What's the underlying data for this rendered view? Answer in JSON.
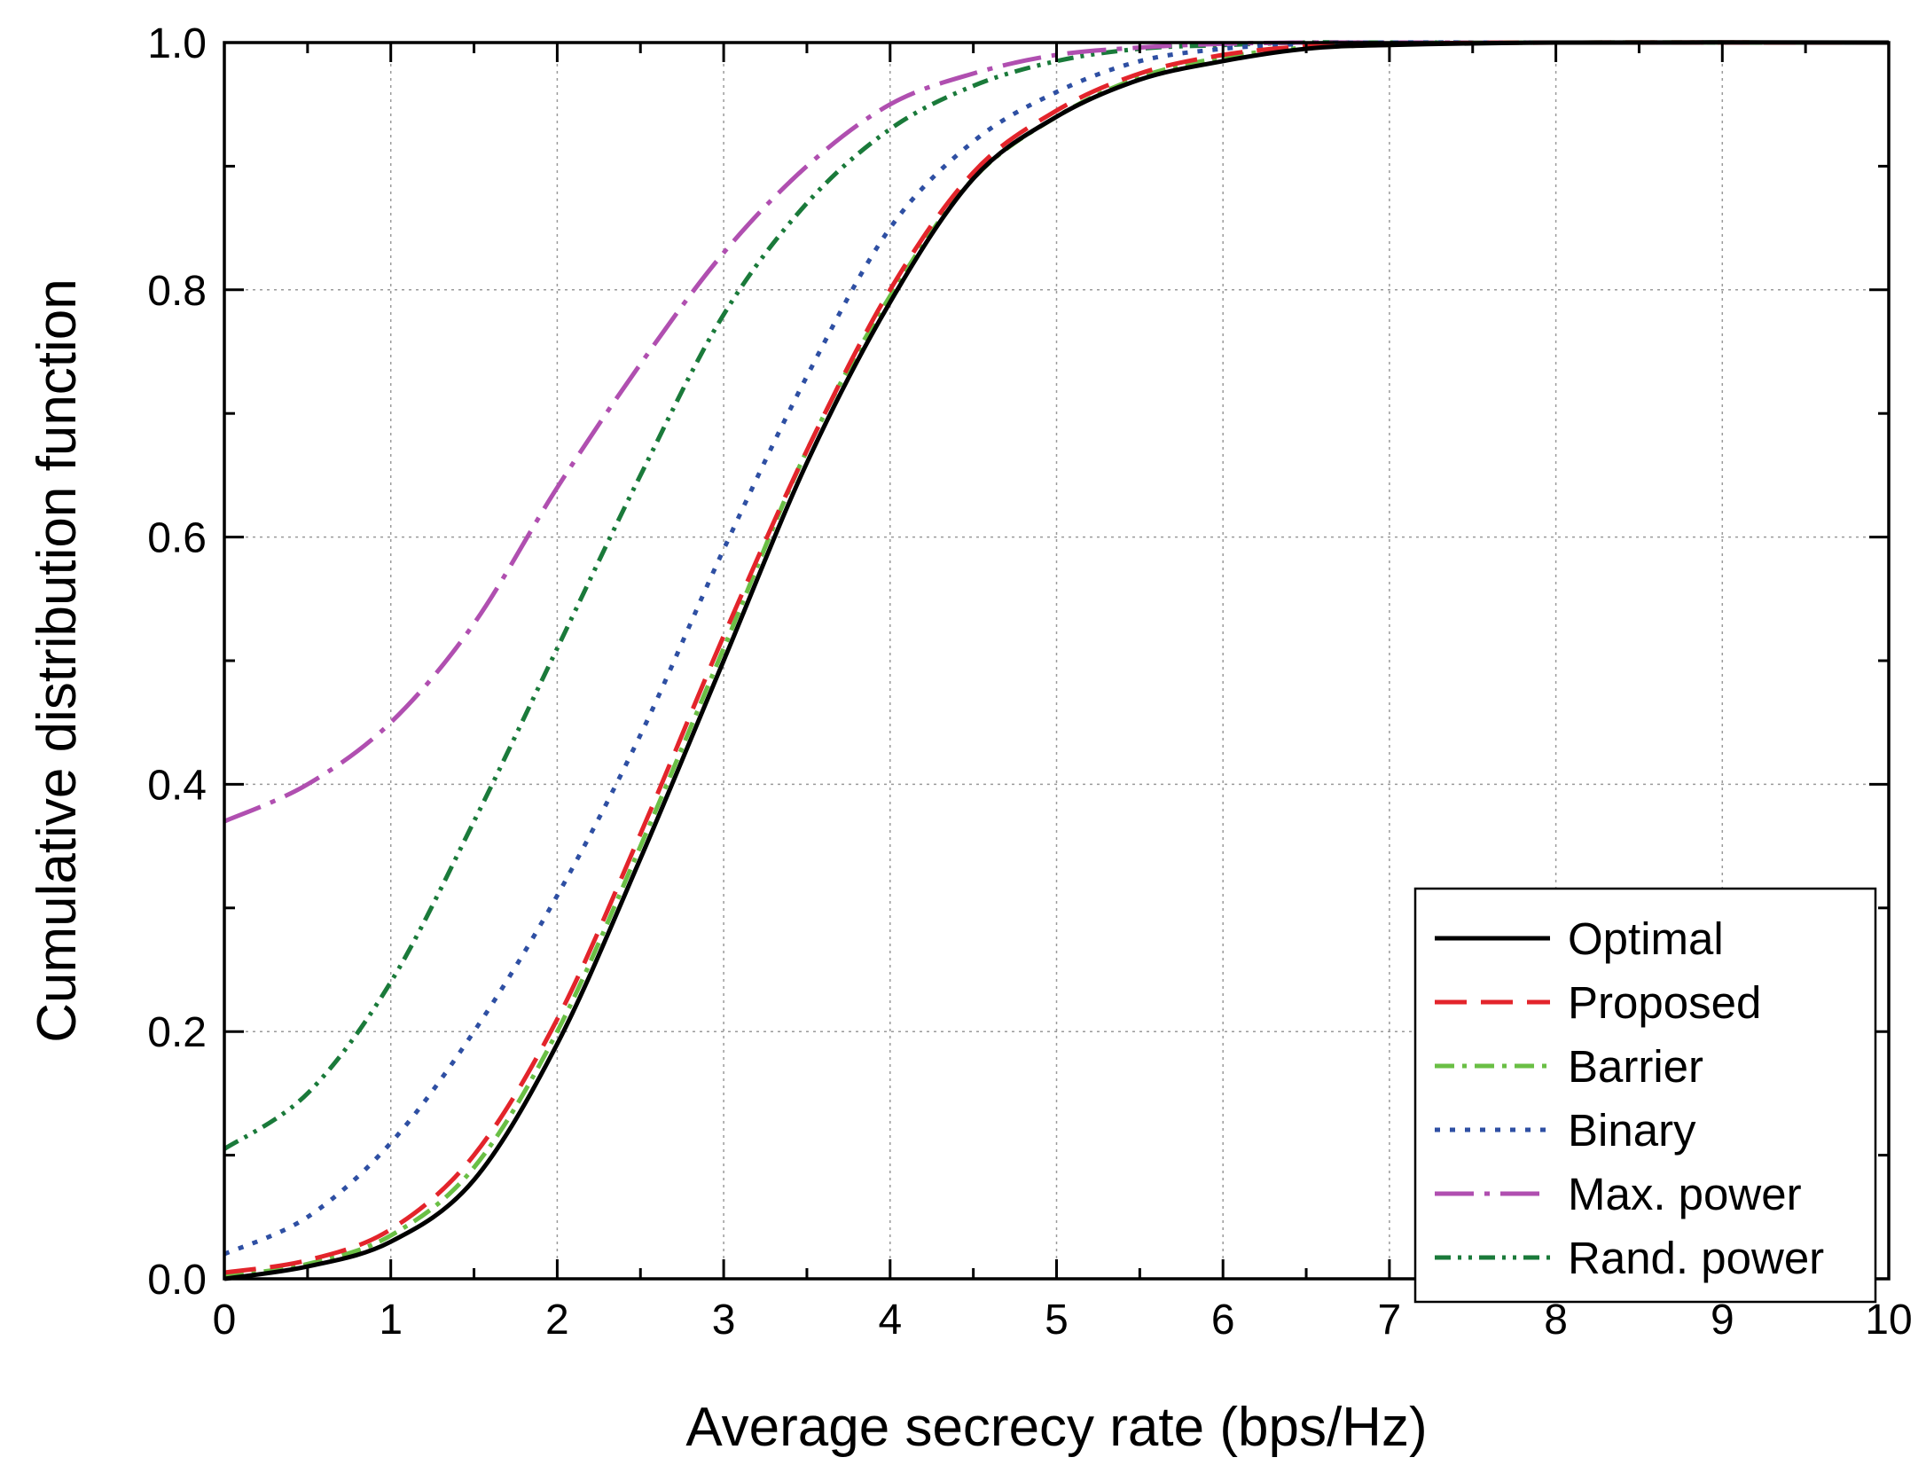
{
  "chart_data": {
    "type": "line",
    "title": "",
    "xlabel": "Average secrecy rate (bps/Hz)",
    "ylabel": "Cumulative distribution function",
    "xlim": [
      0,
      10
    ],
    "ylim": [
      0,
      1.0
    ],
    "xticks": [
      0,
      1,
      2,
      3,
      4,
      5,
      6,
      7,
      8,
      9,
      10
    ],
    "xtick_labels": [
      "0",
      "1",
      "2",
      "3",
      "4",
      "5",
      "6",
      "7",
      "8",
      "9",
      "10"
    ],
    "yticks": [
      0,
      0.2,
      0.4,
      0.6,
      0.8,
      1.0
    ],
    "ytick_labels": [
      "0.0",
      "0.2",
      "0.4",
      "0.6",
      "0.8",
      "1.0"
    ],
    "grid": true,
    "legend_position": "bottom-right",
    "series": [
      {
        "name": "Optimal",
        "color": "#000000",
        "style": "solid",
        "x": [
          0,
          0.5,
          1,
          1.5,
          2,
          2.5,
          3,
          3.5,
          4,
          4.5,
          5,
          5.5,
          6,
          6.5,
          7,
          8,
          10
        ],
        "y": [
          0,
          0.01,
          0.03,
          0.08,
          0.19,
          0.34,
          0.5,
          0.66,
          0.79,
          0.89,
          0.94,
          0.97,
          0.985,
          0.995,
          0.998,
          1.0,
          1.0
        ]
      },
      {
        "name": "Proposed",
        "color": "#e3242b",
        "style": "dash",
        "x": [
          0,
          0.5,
          1,
          1.5,
          2,
          2.5,
          3,
          3.5,
          4,
          4.5,
          5,
          5.5,
          6,
          6.5,
          7,
          8,
          10
        ],
        "y": [
          0.005,
          0.015,
          0.04,
          0.1,
          0.21,
          0.36,
          0.52,
          0.67,
          0.8,
          0.895,
          0.945,
          0.975,
          0.99,
          0.997,
          0.999,
          1.0,
          1.0
        ]
      },
      {
        "name": "Barrier",
        "color": "#6abf45",
        "style": "dashdot",
        "x": [
          0,
          0.5,
          1,
          1.5,
          2,
          2.5,
          3,
          3.5,
          4,
          4.5,
          5,
          5.5,
          6,
          6.5,
          7,
          8,
          10
        ],
        "y": [
          0.002,
          0.012,
          0.035,
          0.09,
          0.2,
          0.35,
          0.51,
          0.67,
          0.795,
          0.89,
          0.94,
          0.972,
          0.988,
          0.996,
          0.999,
          1.0,
          1.0
        ]
      },
      {
        "name": "Binary",
        "color": "#2e4fa3",
        "style": "dot",
        "x": [
          0,
          0.5,
          1,
          1.5,
          2,
          2.5,
          3,
          3.5,
          4,
          4.5,
          5,
          5.5,
          6,
          6.5,
          7,
          8,
          10
        ],
        "y": [
          0.02,
          0.05,
          0.11,
          0.2,
          0.31,
          0.44,
          0.59,
          0.73,
          0.85,
          0.92,
          0.96,
          0.985,
          0.995,
          0.999,
          1.0,
          1.0,
          1.0
        ]
      },
      {
        "name": "Max. power",
        "color": "#b04fb0",
        "style": "longdashdot",
        "x": [
          0,
          0.5,
          1,
          1.5,
          2,
          2.5,
          3,
          3.5,
          4,
          4.5,
          5,
          5.5,
          6,
          6.5,
          7,
          8,
          10
        ],
        "y": [
          0.37,
          0.4,
          0.45,
          0.53,
          0.64,
          0.74,
          0.83,
          0.9,
          0.95,
          0.975,
          0.99,
          0.996,
          0.999,
          1.0,
          1.0,
          1.0,
          1.0
        ]
      },
      {
        "name": "Rand. power",
        "color": "#1a7a3a",
        "style": "dashdotdot",
        "x": [
          0,
          0.5,
          1,
          1.5,
          2,
          2.5,
          3,
          3.5,
          4,
          4.5,
          5,
          5.5,
          6,
          6.5,
          7,
          8,
          10
        ],
        "y": [
          0.105,
          0.15,
          0.24,
          0.37,
          0.51,
          0.65,
          0.78,
          0.87,
          0.93,
          0.965,
          0.985,
          0.995,
          0.998,
          1.0,
          1.0,
          1.0,
          1.0
        ]
      }
    ]
  }
}
